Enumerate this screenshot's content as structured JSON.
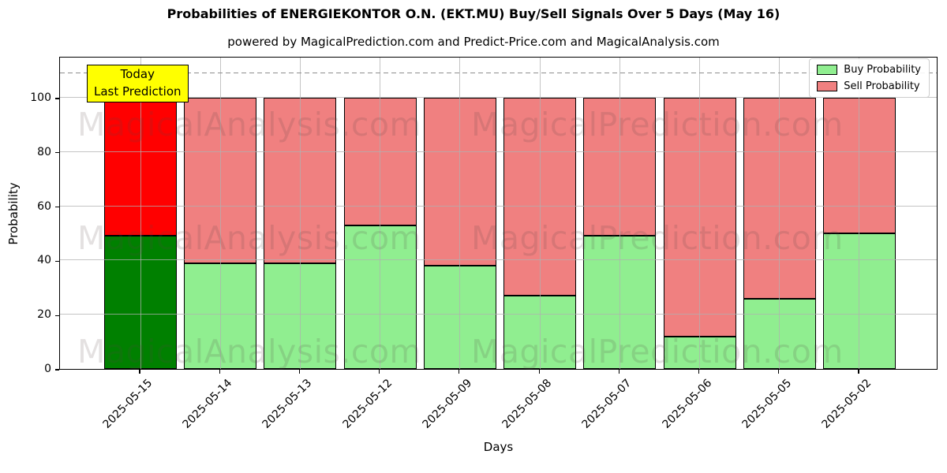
{
  "title": "Probabilities of ENERGIEKONTOR O.N. (EKT.MU) Buy/Sell Signals Over 5 Days (May 16)",
  "subtitle": "powered by MagicalPrediction.com and Predict-Price.com and MagicalAnalysis.com",
  "chart_data": {
    "type": "bar",
    "stacked": true,
    "title": "Probabilities of ENERGIEKONTOR O.N. (EKT.MU) Buy/Sell Signals Over 5 Days (May 16)",
    "subtitle": "powered by MagicalPrediction.com and Predict-Price.com and MagicalAnalysis.com",
    "xlabel": "Days",
    "ylabel": "Probability",
    "categories": [
      "2025-05-15",
      "2025-05-14",
      "2025-05-13",
      "2025-05-12",
      "2025-05-09",
      "2025-05-08",
      "2025-05-07",
      "2025-05-06",
      "2025-05-05",
      "2025-05-02"
    ],
    "series": [
      {
        "name": "Buy Probability",
        "color": "#90ee90",
        "highlight_color": "#008000",
        "values": [
          49,
          39,
          39,
          53,
          38,
          27,
          49,
          12,
          26,
          50
        ]
      },
      {
        "name": "Sell Probability",
        "color": "#f08080",
        "highlight_color": "#ff0000",
        "values": [
          51,
          61,
          61,
          47,
          62,
          73,
          51,
          88,
          74,
          50
        ]
      }
    ],
    "highlight_index": 0,
    "yticks": [
      0,
      20,
      40,
      60,
      80,
      100
    ],
    "ylim": [
      0,
      115.4
    ],
    "dashed_line_y": 110,
    "grid": true,
    "legend_position": "top-right",
    "annotation": {
      "lines": [
        "Today",
        "Last Prediction"
      ],
      "bg_color": "#ffff00"
    },
    "watermarks": [
      "MagicalAnalysis.com",
      "MagicalPrediction.com"
    ]
  }
}
